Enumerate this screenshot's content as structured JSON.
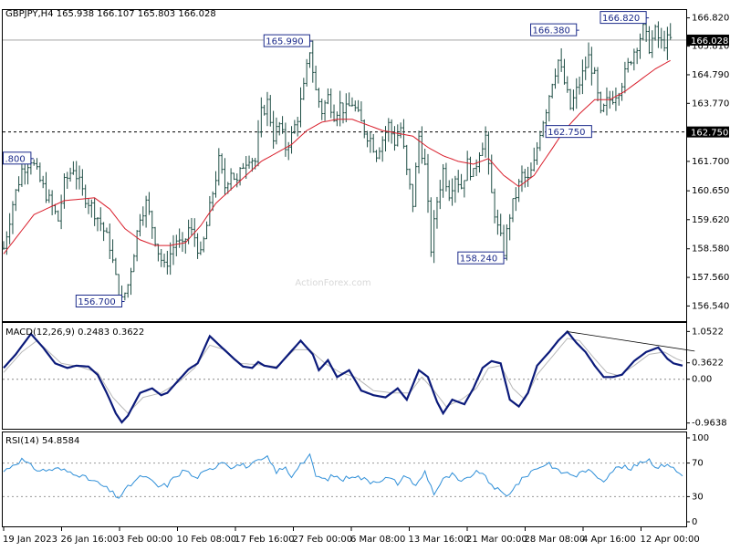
{
  "colors": {
    "background": "#ffffff",
    "frame": "#000000",
    "price_bars": "#1f4e45",
    "ma_line": "#d91e2b",
    "macd_line": "#0b1a7a",
    "macd_signal": "#b8b8b8",
    "rsi_line": "#2f8fd8",
    "dashed": "#666666",
    "current_price_box": "#000000",
    "watermark": "#d8d8d8"
  },
  "chart_data": [
    {
      "type": "ohlc",
      "header": "GBPJPY,H4  165.938 166.107 165.803 166.028",
      "watermark": "ActionForex.com",
      "ylim": [
        156.0,
        167.1
      ],
      "y_ticks": [
        "166.820",
        "165.810",
        "164.790",
        "163.770",
        "162.750",
        "161.700",
        "160.650",
        "159.620",
        "158.580",
        "157.560",
        "156.540"
      ],
      "current_price": "166.028",
      "reference_level": "162.750",
      "annotations": [
        {
          "label": ".800",
          "value": 161.8
        },
        {
          "label": "165.990",
          "value": 165.99
        },
        {
          "label": "156.700",
          "value": 156.7
        },
        {
          "label": "158.240",
          "value": 158.24
        },
        {
          "label": "162.750",
          "value": 162.75
        },
        {
          "label": "166.380",
          "value": 166.38
        },
        {
          "label": "166.820",
          "value": 166.82
        }
      ],
      "close_path": [
        [
          0,
          158.6
        ],
        [
          3,
          160.2
        ],
        [
          6,
          161.4
        ],
        [
          9,
          161.8
        ],
        [
          12,
          161.0
        ],
        [
          15,
          160.3
        ],
        [
          18,
          159.6
        ],
        [
          20,
          160.9
        ],
        [
          23,
          161.5
        ],
        [
          26,
          160.6
        ],
        [
          29,
          160.1
        ],
        [
          32,
          159.5
        ],
        [
          35,
          158.7
        ],
        [
          37,
          157.5
        ],
        [
          39,
          156.7
        ],
        [
          41,
          157.3
        ],
        [
          43,
          158.5
        ],
        [
          45,
          159.8
        ],
        [
          47,
          160.2
        ],
        [
          49,
          159.4
        ],
        [
          51,
          158.5
        ],
        [
          53,
          157.9
        ],
        [
          55,
          158.4
        ],
        [
          57,
          158.9
        ],
        [
          59,
          158.6
        ],
        [
          61,
          159.3
        ],
        [
          63,
          159.0
        ],
        [
          65,
          158.3
        ],
        [
          67,
          159.4
        ],
        [
          69,
          160.6
        ],
        [
          71,
          161.7
        ],
        [
          73,
          160.8
        ],
        [
          75,
          161.4
        ],
        [
          77,
          160.9
        ],
        [
          79,
          161.6
        ],
        [
          81,
          161.9
        ],
        [
          83,
          161.7
        ],
        [
          85,
          163.4
        ],
        [
          87,
          163.8
        ],
        [
          89,
          162.6
        ],
        [
          91,
          163.0
        ],
        [
          93,
          162.2
        ],
        [
          95,
          162.6
        ],
        [
          97,
          163.3
        ],
        [
          99,
          164.3
        ],
        [
          101,
          165.7
        ],
        [
          103,
          164.2
        ],
        [
          105,
          163.5
        ],
        [
          107,
          164.0
        ],
        [
          109,
          163.4
        ],
        [
          111,
          163.7
        ],
        [
          113,
          163.5
        ],
        [
          115,
          163.8
        ],
        [
          117,
          163.3
        ],
        [
          119,
          162.8
        ],
        [
          121,
          162.5
        ],
        [
          123,
          162.0
        ],
        [
          125,
          162.5
        ],
        [
          127,
          163.0
        ],
        [
          129,
          162.4
        ],
        [
          131,
          162.9
        ],
        [
          133,
          161.3
        ],
        [
          135,
          160.2
        ],
        [
          137,
          162.6
        ],
        [
          139,
          161.5
        ],
        [
          141,
          158.6
        ],
        [
          143,
          160.3
        ],
        [
          145,
          161.4
        ],
        [
          147,
          160.6
        ],
        [
          149,
          161.2
        ],
        [
          151,
          160.8
        ],
        [
          153,
          161.6
        ],
        [
          155,
          161.2
        ],
        [
          157,
          162.1
        ],
        [
          159,
          162.6
        ],
        [
          160,
          161.4
        ],
        [
          161,
          160.5
        ],
        [
          163,
          159.3
        ],
        [
          165,
          158.5
        ],
        [
          167,
          159.8
        ],
        [
          169,
          160.5
        ],
        [
          171,
          161.2
        ],
        [
          173,
          161.0
        ],
        [
          175,
          161.6
        ],
        [
          177,
          162.8
        ],
        [
          179,
          163.6
        ],
        [
          181,
          164.6
        ],
        [
          183,
          165.3
        ],
        [
          185,
          164.5
        ],
        [
          187,
          163.6
        ],
        [
          189,
          164.2
        ],
        [
          191,
          164.8
        ],
        [
          193,
          165.4
        ],
        [
          195,
          164.7
        ],
        [
          197,
          163.3
        ],
        [
          199,
          163.8
        ],
        [
          201,
          164.0
        ],
        [
          203,
          164.3
        ],
        [
          205,
          164.8
        ],
        [
          207,
          165.4
        ],
        [
          209,
          165.9
        ],
        [
          211,
          166.4
        ],
        [
          213,
          165.8
        ],
        [
          215,
          166.3
        ],
        [
          217,
          165.9
        ],
        [
          219,
          166.0
        ],
        [
          220,
          166.03
        ]
      ],
      "ma_path": [
        [
          0,
          158.4
        ],
        [
          10,
          159.8
        ],
        [
          20,
          160.3
        ],
        [
          30,
          160.4
        ],
        [
          35,
          160.0
        ],
        [
          40,
          159.3
        ],
        [
          45,
          158.9
        ],
        [
          50,
          158.7
        ],
        [
          55,
          158.7
        ],
        [
          60,
          158.8
        ],
        [
          65,
          159.4
        ],
        [
          70,
          160.2
        ],
        [
          75,
          160.7
        ],
        [
          80,
          161.2
        ],
        [
          85,
          161.7
        ],
        [
          90,
          162.0
        ],
        [
          95,
          162.3
        ],
        [
          100,
          162.8
        ],
        [
          105,
          163.1
        ],
        [
          110,
          163.2
        ],
        [
          115,
          163.2
        ],
        [
          120,
          163.0
        ],
        [
          125,
          162.8
        ],
        [
          130,
          162.7
        ],
        [
          135,
          162.6
        ],
        [
          140,
          162.2
        ],
        [
          145,
          161.9
        ],
        [
          150,
          161.7
        ],
        [
          155,
          161.6
        ],
        [
          160,
          161.8
        ],
        [
          165,
          161.2
        ],
        [
          170,
          160.8
        ],
        [
          175,
          161.2
        ],
        [
          180,
          162.0
        ],
        [
          185,
          162.8
        ],
        [
          190,
          163.4
        ],
        [
          195,
          163.9
        ],
        [
          200,
          163.9
        ],
        [
          205,
          164.2
        ],
        [
          210,
          164.6
        ],
        [
          215,
          165.0
        ],
        [
          220,
          165.3
        ]
      ]
    },
    {
      "type": "line",
      "header": "MACD(12,26,9) 0.2483 0.3622",
      "ylim": [
        -1.05,
        1.12
      ],
      "y_ticks": [
        "1.0522",
        "0.3622",
        "0.00",
        "-0.9638"
      ],
      "macd_path": [
        [
          0,
          0.25
        ],
        [
          4,
          0.55
        ],
        [
          9,
          1.0
        ],
        [
          13,
          0.7
        ],
        [
          17,
          0.35
        ],
        [
          21,
          0.25
        ],
        [
          24,
          0.3
        ],
        [
          28,
          0.28
        ],
        [
          31,
          0.1
        ],
        [
          34,
          -0.3
        ],
        [
          37,
          -0.75
        ],
        [
          39,
          -0.95
        ],
        [
          41,
          -0.8
        ],
        [
          45,
          -0.3
        ],
        [
          49,
          -0.2
        ],
        [
          52,
          -0.35
        ],
        [
          54,
          -0.3
        ],
        [
          58,
          0.0
        ],
        [
          61,
          0.22
        ],
        [
          64,
          0.35
        ],
        [
          68,
          0.95
        ],
        [
          72,
          0.7
        ],
        [
          76,
          0.45
        ],
        [
          79,
          0.28
        ],
        [
          82,
          0.25
        ],
        [
          84,
          0.38
        ],
        [
          86,
          0.3
        ],
        [
          90,
          0.25
        ],
        [
          94,
          0.55
        ],
        [
          98,
          0.85
        ],
        [
          102,
          0.55
        ],
        [
          104,
          0.2
        ],
        [
          107,
          0.42
        ],
        [
          110,
          0.05
        ],
        [
          114,
          0.2
        ],
        [
          118,
          -0.25
        ],
        [
          122,
          -0.35
        ],
        [
          126,
          -0.4
        ],
        [
          130,
          -0.2
        ],
        [
          133,
          -0.45
        ],
        [
          137,
          0.2
        ],
        [
          140,
          0.05
        ],
        [
          143,
          -0.5
        ],
        [
          145,
          -0.75
        ],
        [
          148,
          -0.45
        ],
        [
          152,
          -0.55
        ],
        [
          155,
          -0.2
        ],
        [
          158,
          0.25
        ],
        [
          161,
          0.4
        ],
        [
          164,
          0.35
        ],
        [
          167,
          -0.45
        ],
        [
          170,
          -0.6
        ],
        [
          173,
          -0.3
        ],
        [
          176,
          0.3
        ],
        [
          180,
          0.6
        ],
        [
          183,
          0.85
        ],
        [
          186,
          1.05
        ],
        [
          189,
          0.8
        ],
        [
          192,
          0.6
        ],
        [
          195,
          0.3
        ],
        [
          198,
          0.05
        ],
        [
          201,
          0.05
        ],
        [
          204,
          0.1
        ],
        [
          208,
          0.4
        ],
        [
          212,
          0.6
        ],
        [
          216,
          0.7
        ],
        [
          219,
          0.45
        ],
        [
          221,
          0.35
        ],
        [
          224,
          0.3
        ]
      ],
      "signal_path": [
        [
          0,
          0.15
        ],
        [
          6,
          0.6
        ],
        [
          11,
          0.85
        ],
        [
          15,
          0.6
        ],
        [
          19,
          0.35
        ],
        [
          25,
          0.28
        ],
        [
          31,
          0.15
        ],
        [
          36,
          -0.4
        ],
        [
          41,
          -0.75
        ],
        [
          46,
          -0.4
        ],
        [
          52,
          -0.3
        ],
        [
          58,
          -0.05
        ],
        [
          63,
          0.25
        ],
        [
          68,
          0.75
        ],
        [
          73,
          0.65
        ],
        [
          78,
          0.35
        ],
        [
          84,
          0.32
        ],
        [
          90,
          0.28
        ],
        [
          96,
          0.65
        ],
        [
          101,
          0.65
        ],
        [
          106,
          0.35
        ],
        [
          111,
          0.15
        ],
        [
          116,
          0.05
        ],
        [
          122,
          -0.25
        ],
        [
          128,
          -0.3
        ],
        [
          134,
          -0.3
        ],
        [
          138,
          0.05
        ],
        [
          142,
          -0.25
        ],
        [
          146,
          -0.6
        ],
        [
          151,
          -0.45
        ],
        [
          156,
          -0.2
        ],
        [
          160,
          0.25
        ],
        [
          164,
          0.3
        ],
        [
          168,
          -0.2
        ],
        [
          172,
          -0.45
        ],
        [
          176,
          0.1
        ],
        [
          181,
          0.5
        ],
        [
          186,
          0.9
        ],
        [
          190,
          0.85
        ],
        [
          195,
          0.45
        ],
        [
          199,
          0.15
        ],
        [
          203,
          0.08
        ],
        [
          208,
          0.3
        ],
        [
          213,
          0.55
        ],
        [
          218,
          0.6
        ],
        [
          222,
          0.45
        ],
        [
          224,
          0.4
        ]
      ],
      "trendline": {
        "x": [
          186,
          228
        ],
        "y": [
          1.05,
          0.62
        ]
      }
    },
    {
      "type": "line",
      "header": "RSI(14) 54.8584",
      "ylim": [
        0,
        100
      ],
      "y_ticks": [
        "100",
        "70",
        "30",
        "0"
      ],
      "levels": [
        70,
        30
      ],
      "rsi_path": [
        [
          0,
          60
        ],
        [
          3,
          68
        ],
        [
          6,
          74
        ],
        [
          9,
          66
        ],
        [
          12,
          61
        ],
        [
          15,
          62
        ],
        [
          18,
          63
        ],
        [
          21,
          60
        ],
        [
          24,
          58
        ],
        [
          27,
          52
        ],
        [
          30,
          48
        ],
        [
          33,
          42
        ],
        [
          36,
          34
        ],
        [
          38,
          29
        ],
        [
          40,
          37
        ],
        [
          43,
          48
        ],
        [
          46,
          55
        ],
        [
          48,
          50
        ],
        [
          51,
          42
        ],
        [
          54,
          44
        ],
        [
          57,
          55
        ],
        [
          60,
          62
        ],
        [
          63,
          52
        ],
        [
          66,
          58
        ],
        [
          69,
          64
        ],
        [
          72,
          73
        ],
        [
          75,
          66
        ],
        [
          78,
          68
        ],
        [
          81,
          66
        ],
        [
          84,
          72
        ],
        [
          87,
          76
        ],
        [
          90,
          60
        ],
        [
          93,
          64
        ],
        [
          95,
          54
        ],
        [
          97,
          66
        ],
        [
          99,
          72
        ],
        [
          101,
          78
        ],
        [
          103,
          55
        ],
        [
          106,
          50
        ],
        [
          109,
          55
        ],
        [
          112,
          50
        ],
        [
          115,
          56
        ],
        [
          118,
          52
        ],
        [
          121,
          48
        ],
        [
          124,
          50
        ],
        [
          127,
          52
        ],
        [
          130,
          46
        ],
        [
          133,
          56
        ],
        [
          136,
          42
        ],
        [
          139,
          60
        ],
        [
          142,
          34
        ],
        [
          145,
          50
        ],
        [
          148,
          56
        ],
        [
          151,
          46
        ],
        [
          154,
          55
        ],
        [
          157,
          60
        ],
        [
          160,
          48
        ],
        [
          163,
          38
        ],
        [
          166,
          30
        ],
        [
          168,
          40
        ],
        [
          171,
          50
        ],
        [
          174,
          60
        ],
        [
          177,
          66
        ],
        [
          180,
          70
        ],
        [
          183,
          60
        ],
        [
          186,
          58
        ],
        [
          189,
          55
        ],
        [
          192,
          62
        ],
        [
          195,
          56
        ],
        [
          198,
          50
        ],
        [
          201,
          62
        ],
        [
          204,
          66
        ],
        [
          207,
          62
        ],
        [
          210,
          72
        ],
        [
          213,
          74
        ],
        [
          216,
          64
        ],
        [
          219,
          70
        ],
        [
          222,
          60
        ],
        [
          224,
          55
        ]
      ]
    }
  ],
  "x_axis_labels": [
    "19 Jan 2023",
    "26 Jan 16:00",
    "3 Feb 00:00",
    "10 Feb 08:00",
    "17 Feb 16:00",
    "27 Feb 00:00",
    "6 Mar 08:00",
    "13 Mar 16:00",
    "21 Mar 00:00",
    "28 Mar 08:00",
    "4 Apr 16:00",
    "12 Apr 00:00"
  ]
}
